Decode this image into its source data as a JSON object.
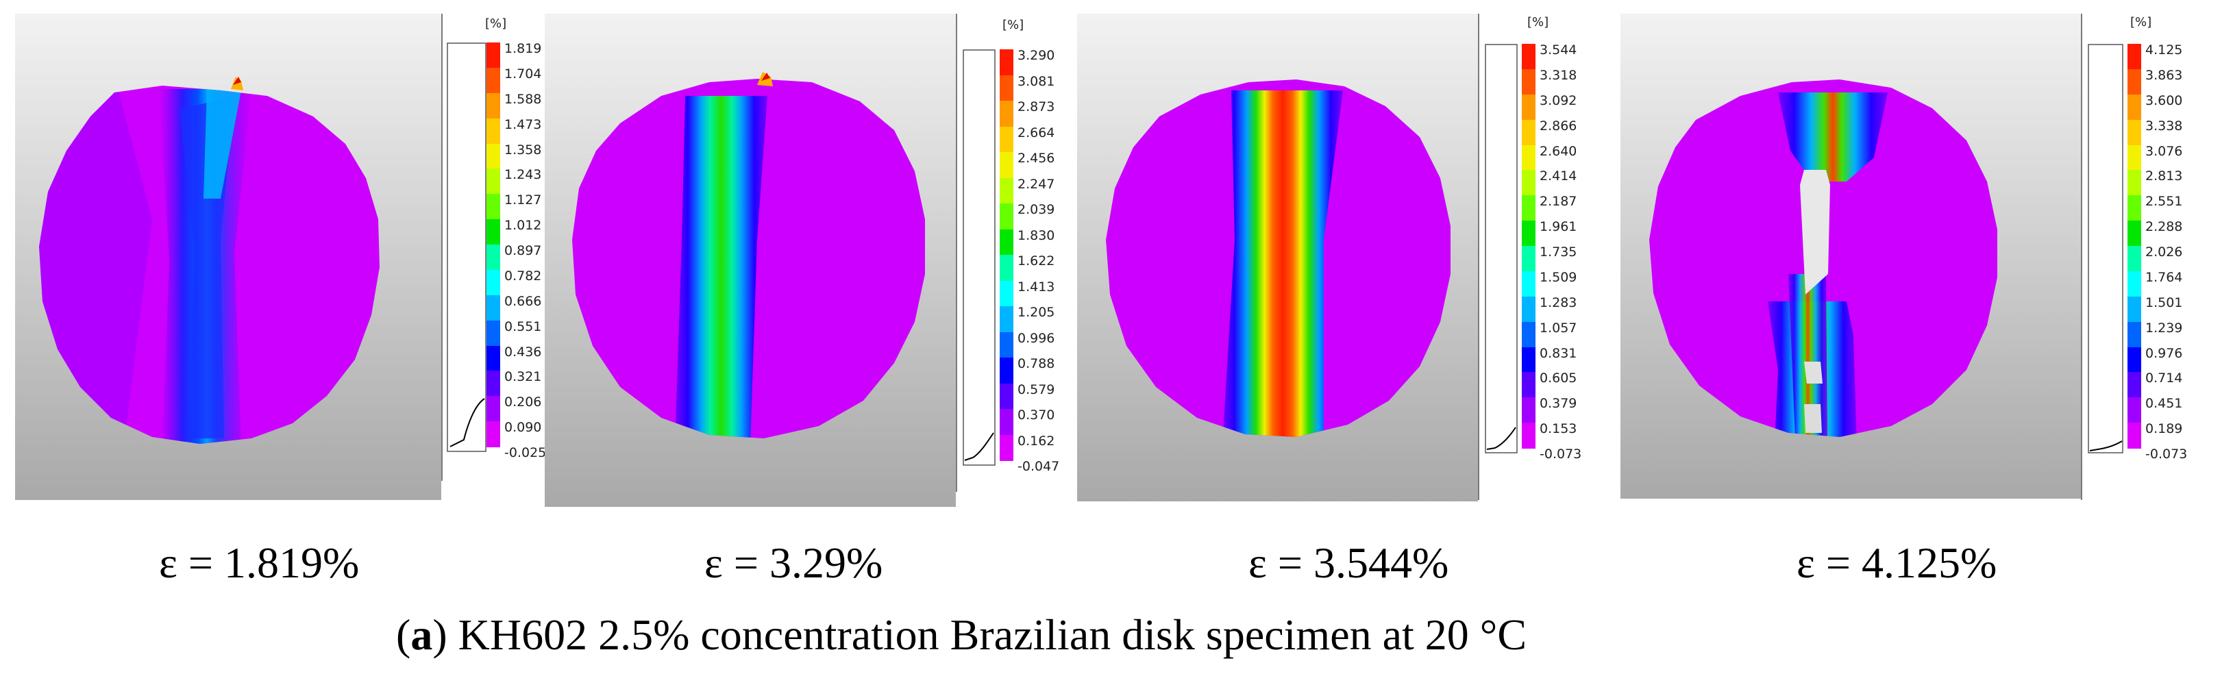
{
  "panels": [
    {
      "unit": "[%]",
      "scale": [
        "1.819",
        "1.704",
        "1.588",
        "1.473",
        "1.358",
        "1.243",
        "1.127",
        "1.012",
        "0.897",
        "0.782",
        "0.666",
        "0.551",
        "0.436",
        "0.321",
        "0.206",
        "0.090",
        "-0.025"
      ],
      "caption_symbol": "ε",
      "caption_value": "= 1.819%"
    },
    {
      "unit": "[%]",
      "scale": [
        "3.290",
        "3.081",
        "2.873",
        "2.664",
        "2.456",
        "2.247",
        "2.039",
        "1.830",
        "1.622",
        "1.413",
        "1.205",
        "0.996",
        "0.788",
        "0.579",
        "0.370",
        "0.162",
        "-0.047"
      ],
      "caption_symbol": "ε",
      "caption_value": "= 3.29%"
    },
    {
      "unit": "[%]",
      "scale": [
        "3.544",
        "3.318",
        "3.092",
        "2.866",
        "2.640",
        "2.414",
        "2.187",
        "1.961",
        "1.735",
        "1.509",
        "1.283",
        "1.057",
        "0.831",
        "0.605",
        "0.379",
        "0.153",
        "-0.073"
      ],
      "caption_symbol": "ε",
      "caption_value": "= 3.544%"
    },
    {
      "unit": "[%]",
      "scale": [
        "4.125",
        "3.863",
        "3.600",
        "3.338",
        "3.076",
        "2.813",
        "2.551",
        "2.288",
        "2.026",
        "1.764",
        "1.501",
        "1.239",
        "0.976",
        "0.714",
        "0.451",
        "0.189",
        "-0.073"
      ],
      "caption_symbol": "ε",
      "caption_value": "= 4.125%"
    }
  ],
  "figure_caption": {
    "label": "a",
    "text": "KH602 2.5% concentration Brazilian disk specimen at 20 °C"
  },
  "colormap": [
    "#ff1a00",
    "#ff5500",
    "#ff9900",
    "#ffcc00",
    "#f2f200",
    "#b8ff00",
    "#66ff00",
    "#00e600",
    "#00ffaa",
    "#00ffff",
    "#00b4ff",
    "#0066ff",
    "#0000ff",
    "#5a00ff",
    "#a000ff",
    "#dd00ff"
  ]
}
